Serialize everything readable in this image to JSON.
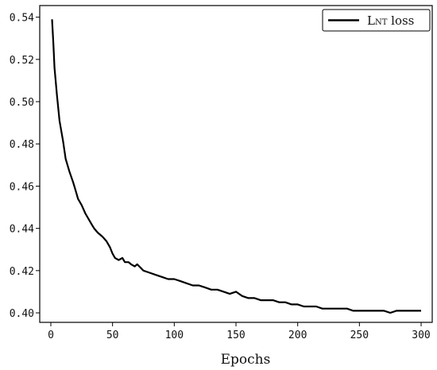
{
  "chart_data": {
    "type": "line",
    "title": "",
    "xlabel": "Epochs",
    "ylabel": "",
    "xlim": [
      -9,
      309
    ],
    "ylim": [
      0.3955,
      0.5455
    ],
    "xticks": [
      0,
      50,
      100,
      150,
      200,
      250,
      300
    ],
    "xtick_labels": [
      "0",
      "50",
      "100",
      "150",
      "200",
      "250",
      "300"
    ],
    "yticks": [
      0.4,
      0.42,
      0.44,
      0.46,
      0.48,
      0.5,
      0.52,
      0.54
    ],
    "ytick_labels": [
      "0.40",
      "0.42",
      "0.44",
      "0.46",
      "0.48",
      "0.50",
      "0.52",
      "0.54"
    ],
    "grid": false,
    "legend": {
      "placement": "top-right",
      "entry_main": "L",
      "entry_sub": "NT",
      "entry_rest": " loss"
    },
    "series": [
      {
        "name": "LNT loss",
        "color": "#000000",
        "x": [
          1,
          2,
          3,
          5,
          7,
          10,
          12,
          15,
          18,
          20,
          22,
          25,
          28,
          30,
          33,
          35,
          38,
          40,
          42,
          45,
          48,
          50,
          52,
          55,
          58,
          60,
          63,
          65,
          68,
          70,
          75,
          80,
          85,
          90,
          95,
          100,
          105,
          110,
          115,
          120,
          125,
          130,
          135,
          140,
          145,
          150,
          155,
          160,
          165,
          170,
          175,
          180,
          185,
          190,
          195,
          200,
          205,
          210,
          215,
          220,
          225,
          230,
          235,
          240,
          245,
          250,
          255,
          260,
          265,
          270,
          275,
          280,
          285,
          290,
          295,
          300
        ],
        "y": [
          0.539,
          0.528,
          0.516,
          0.503,
          0.491,
          0.481,
          0.473,
          0.467,
          0.462,
          0.458,
          0.454,
          0.451,
          0.447,
          0.445,
          0.442,
          0.44,
          0.438,
          0.437,
          0.436,
          0.434,
          0.431,
          0.428,
          0.426,
          0.425,
          0.426,
          0.424,
          0.424,
          0.423,
          0.422,
          0.423,
          0.42,
          0.419,
          0.418,
          0.417,
          0.416,
          0.416,
          0.415,
          0.414,
          0.413,
          0.413,
          0.412,
          0.411,
          0.411,
          0.41,
          0.409,
          0.41,
          0.408,
          0.407,
          0.407,
          0.406,
          0.406,
          0.406,
          0.405,
          0.405,
          0.404,
          0.404,
          0.403,
          0.403,
          0.403,
          0.402,
          0.402,
          0.402,
          0.402,
          0.402,
          0.401,
          0.401,
          0.401,
          0.401,
          0.401,
          0.401,
          0.4,
          0.401,
          0.401,
          0.401,
          0.401,
          0.401
        ]
      }
    ],
    "colors": {
      "axis": "#000000",
      "line": "#000000",
      "background": "#ffffff"
    }
  }
}
